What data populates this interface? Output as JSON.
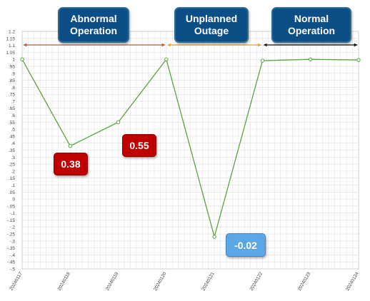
{
  "chart_data": {
    "type": "line",
    "x": [
      "20240117",
      "20240118",
      "20240119",
      "20240120",
      "20240121",
      "20240122",
      "20240123",
      "20240124"
    ],
    "series": [
      {
        "values": [
          1.0,
          0.38,
          0.55,
          1.0,
          -0.27,
          0.99,
          1.0,
          0.995
        ]
      }
    ],
    "ylim": [
      -0.5,
      1.2
    ],
    "ytick_step": 0.05,
    "grid": true,
    "line_color": "#5aa33f",
    "phases": [
      {
        "label": "Abnormal Operation",
        "start": 0,
        "end": 3,
        "arrow_color": "#c0603a"
      },
      {
        "label": "Unplanned Outage",
        "start": 3,
        "end": 5,
        "arrow_color": "#f4a21e"
      },
      {
        "label": "Normal Operation",
        "start": 5,
        "end": 7,
        "arrow_color": "#111111"
      }
    ],
    "annotations": [
      {
        "text": "0.38",
        "color": "#c00000"
      },
      {
        "text": "0.55",
        "color": "#c00000"
      },
      {
        "text": "-0.02",
        "color": "#5ba6e5"
      }
    ]
  }
}
